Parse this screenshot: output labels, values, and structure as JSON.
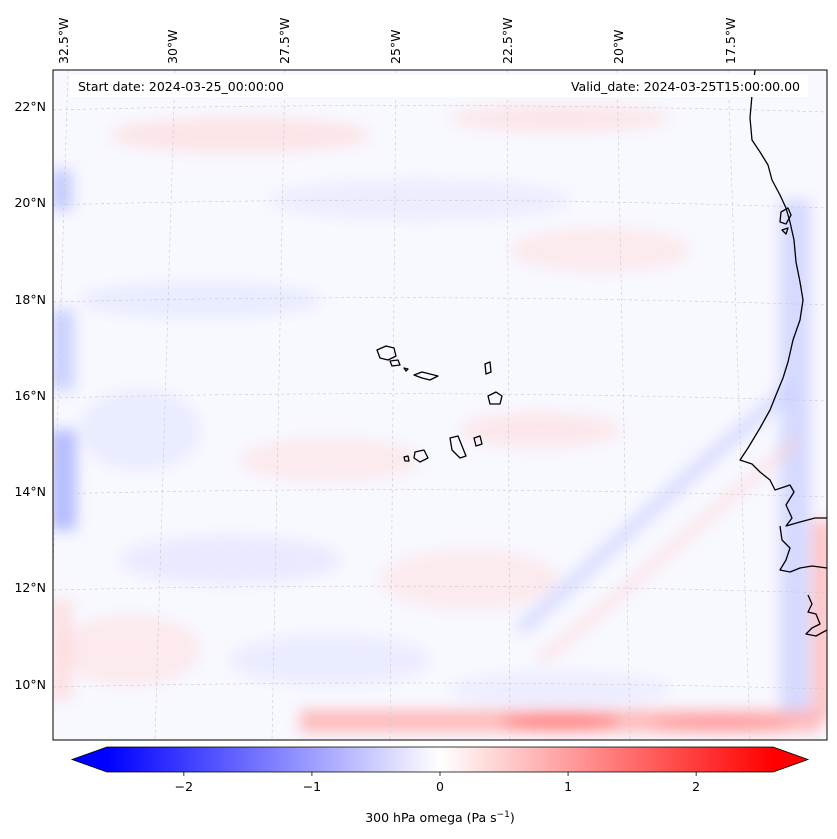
{
  "map": {
    "info_left": "Start date: 2024-03-25_00:00:00",
    "info_right": "Valid_date: 2024-03-25T15:00:00.00",
    "lon_labels": [
      "32.5°W",
      "30°W",
      "27.5°W",
      "25°W",
      "22.5°W",
      "20°W",
      "17.5°W"
    ],
    "lat_labels": [
      "22°N",
      "20°N",
      "18°N",
      "16°N",
      "14°N",
      "12°N",
      "10°N"
    ],
    "land_features": [
      "west-african-coastline",
      "cape-verde-islands"
    ]
  },
  "colorbar": {
    "label": "300 hPa omega (Pa s",
    "label_unit_sup": "−1",
    "label_close": ")",
    "ticks": [
      "−2",
      "−1",
      "0",
      "1",
      "2"
    ],
    "tick_values": [
      -2,
      -1,
      0,
      1,
      2
    ],
    "range": [
      -2.6,
      2.6
    ],
    "colors": {
      "low": "#0000ff",
      "mid": "#ffffff",
      "high": "#ff0000"
    },
    "extend": "both"
  }
}
